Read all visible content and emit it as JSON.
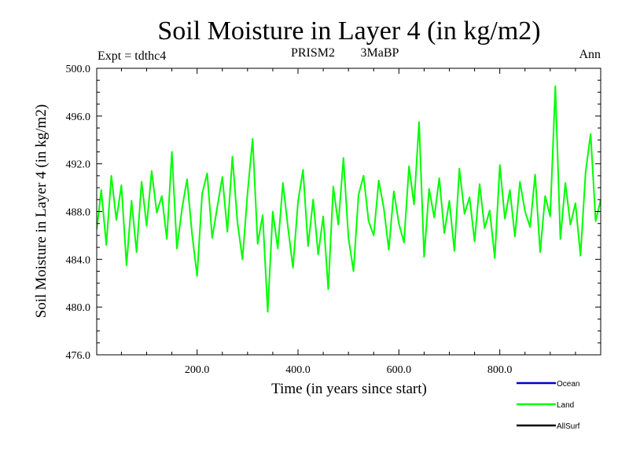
{
  "chart_data": {
    "type": "line",
    "title": "Soil Moisture in Layer 4 (in kg/m2)",
    "subtitle_left": "Expt = tdthc4",
    "subtitle_center_1": "PRISM2",
    "subtitle_center_2": "3MaBP",
    "subtitle_right": "Ann",
    "xlabel": "Time (in years since start)",
    "ylabel": "Soil Moisture in Layer 4 (in kg/m2)",
    "xlim": [
      1,
      1000
    ],
    "ylim": [
      476.0,
      500.0
    ],
    "xticks": [
      200,
      400,
      600,
      800
    ],
    "xtick_labels": [
      "200.0",
      "400.0",
      "600.0",
      "800.0"
    ],
    "yticks": [
      476,
      480,
      484,
      488,
      492,
      496,
      500
    ],
    "ytick_labels": [
      "476.0",
      "480.0",
      "484.0",
      "488.0",
      "492.0",
      "496.0",
      "500.0"
    ],
    "legend": [
      {
        "name": "Ocean",
        "color": "#0000cc"
      },
      {
        "name": "Land",
        "color": "#00ff00"
      },
      {
        "name": "AllSurf",
        "color": "#000000"
      }
    ],
    "series": [
      {
        "name": "Land",
        "color": "#00ff00",
        "x": [
          1,
          10,
          20,
          30,
          40,
          50,
          60,
          70,
          80,
          90,
          100,
          110,
          120,
          130,
          140,
          150,
          160,
          170,
          180,
          190,
          200,
          210,
          220,
          230,
          240,
          250,
          260,
          270,
          280,
          290,
          300,
          310,
          320,
          330,
          340,
          350,
          360,
          370,
          380,
          390,
          400,
          410,
          420,
          430,
          440,
          450,
          460,
          470,
          480,
          490,
          500,
          510,
          520,
          530,
          540,
          550,
          560,
          570,
          580,
          590,
          600,
          610,
          620,
          630,
          640,
          650,
          660,
          670,
          680,
          690,
          700,
          710,
          720,
          730,
          740,
          750,
          760,
          770,
          780,
          790,
          800,
          810,
          820,
          830,
          840,
          850,
          860,
          870,
          880,
          890,
          900,
          910,
          920,
          930,
          940,
          950,
          960,
          970,
          980,
          990,
          1000
        ],
        "values": [
          486.5,
          489.8,
          485.2,
          491.0,
          487.3,
          490.2,
          483.5,
          488.9,
          484.6,
          490.5,
          486.8,
          491.4,
          487.9,
          489.3,
          485.7,
          493.0,
          484.9,
          488.2,
          490.7,
          486.1,
          482.6,
          489.5,
          491.2,
          485.8,
          488.4,
          490.9,
          486.3,
          492.6,
          487.1,
          484.0,
          489.6,
          494.1,
          485.3,
          487.7,
          479.6,
          488.0,
          484.9,
          490.4,
          486.7,
          483.3,
          488.8,
          491.5,
          485.1,
          489.0,
          484.4,
          487.6,
          481.5,
          490.1,
          486.9,
          492.5,
          485.8,
          483.0,
          489.4,
          491.0,
          487.2,
          486.0,
          490.6,
          488.3,
          484.8,
          489.7,
          487.0,
          485.4,
          491.8,
          488.6,
          495.5,
          484.2,
          489.9,
          487.5,
          490.8,
          486.2,
          488.9,
          484.7,
          491.6,
          487.8,
          489.2,
          485.5,
          490.3,
          486.6,
          488.1,
          484.1,
          491.9,
          487.4,
          489.8,
          485.9,
          490.5,
          488.0,
          486.7,
          491.1,
          484.6,
          489.3,
          487.6,
          498.5,
          485.7,
          490.4,
          486.9,
          488.7,
          484.3,
          491.3,
          494.5,
          487.2,
          489.0
        ]
      }
    ]
  }
}
